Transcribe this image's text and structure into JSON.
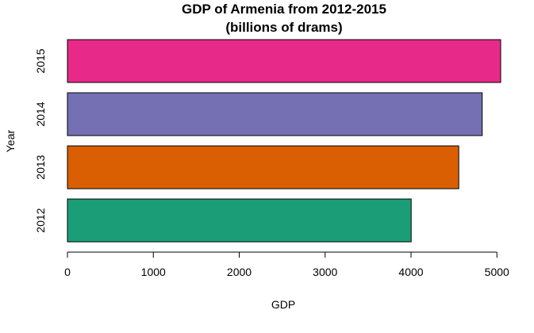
{
  "chart_data": {
    "type": "bar",
    "orientation": "horizontal",
    "title": "GDP of Armenia from 2012-2015",
    "subtitle": "(billions of drams)",
    "xlabel": "GDP",
    "ylabel": "Year",
    "categories": [
      "2012",
      "2013",
      "2014",
      "2015"
    ],
    "values": [
      4002,
      4556,
      4829,
      5044
    ],
    "colors": [
      "#1B9E77",
      "#D95F02",
      "#7570B3",
      "#E7298A"
    ],
    "xlim": [
      0,
      5044
    ],
    "xticks": [
      0,
      1000,
      2000,
      3000,
      4000,
      5000
    ],
    "grid": false,
    "legend": "none"
  }
}
